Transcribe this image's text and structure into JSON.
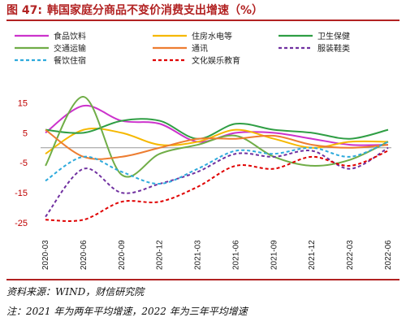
{
  "header": {
    "figure_label": "图 47:",
    "title": "韩国家庭分商品不变价消费支出增速（%）"
  },
  "footer": {
    "source": "资料来源：WIND，财信研究院",
    "note": "注：2021 年为两年平均增速，2022 年为三年平均增速"
  },
  "chart_data": {
    "type": "line",
    "title": "韩国家庭分商品不变价消费支出增速（%）",
    "x": [
      "2020-03",
      "2020-06",
      "2020-09",
      "2020-12",
      "2021-03",
      "2021-06",
      "2021-09",
      "2021-12",
      "2022-03",
      "2022-06"
    ],
    "ylim": [
      -25,
      20
    ],
    "yticks": [
      15,
      5,
      -5,
      -15,
      -25
    ],
    "legend_position": "top",
    "series": [
      {
        "name": "食品饮料",
        "color": "#cc33cc",
        "style": "solid",
        "values": [
          5,
          14,
          9,
          8,
          2,
          5,
          5,
          3,
          1,
          1
        ]
      },
      {
        "name": "住房水电等",
        "color": "#f5b800",
        "style": "solid",
        "values": [
          -2,
          6,
          5,
          1,
          2,
          6,
          3,
          0,
          2,
          2
        ]
      },
      {
        "name": "卫生保健",
        "color": "#2f9e44",
        "style": "solid",
        "values": [
          6,
          5,
          9,
          9,
          3,
          8,
          6,
          5,
          3,
          6
        ]
      },
      {
        "name": "交通运输",
        "color": "#70ad47",
        "style": "solid",
        "values": [
          -6,
          17,
          -9,
          -2,
          1,
          4,
          -3,
          -6,
          -4,
          2
        ]
      },
      {
        "name": "通讯",
        "color": "#ed7d31",
        "style": "solid",
        "values": [
          6,
          -3,
          -3,
          0,
          3,
          3,
          4,
          1,
          0,
          1
        ]
      },
      {
        "name": "服装鞋类",
        "color": "#7030a0",
        "style": "dashed",
        "values": [
          -23,
          -7,
          -15,
          -12,
          -8,
          -2,
          -3,
          -1,
          -7,
          0
        ]
      },
      {
        "name": "餐饮住宿",
        "color": "#2eaadc",
        "style": "dashed",
        "values": [
          -11,
          -3,
          -8,
          -12,
          -7,
          -1,
          -2,
          0,
          -3,
          2
        ]
      },
      {
        "name": "文化娱乐教育",
        "color": "#e00000",
        "style": "dashed",
        "values": [
          -24,
          -24,
          -18,
          -18,
          -13,
          -6,
          -7,
          -3,
          -6,
          -1
        ]
      }
    ]
  }
}
